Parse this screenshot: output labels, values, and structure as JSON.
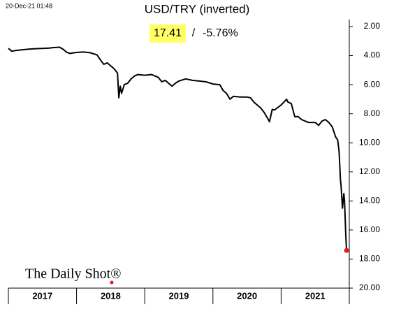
{
  "chart_data": {
    "type": "line",
    "title": "USD/TRY (inverted)",
    "timestamp": "20-Dec-21 01:48",
    "annotation": [
      "17.41",
      "/",
      "-5.76%"
    ],
    "watermark": "The Daily Shot®",
    "categories": [
      "2017",
      "2018",
      "2019",
      "2020",
      "2021"
    ],
    "xlim": [
      2017,
      2022
    ],
    "xticks": [
      2017,
      2018,
      2019,
      2020,
      2021,
      2022
    ],
    "ylim": [
      20,
      2
    ],
    "inverted": true,
    "yticks": [
      {
        "value": 2,
        "label": "2.00"
      },
      {
        "value": 4,
        "label": "4.00"
      },
      {
        "value": 6,
        "label": "6.00"
      },
      {
        "value": 8,
        "label": "8.00"
      },
      {
        "value": 10,
        "label": "10.00"
      },
      {
        "value": 12,
        "label": "12.00"
      },
      {
        "value": 14,
        "label": "14.00"
      },
      {
        "value": 16,
        "label": "16.00"
      },
      {
        "value": 18,
        "label": "18.00"
      },
      {
        "value": 20,
        "label": "20.00"
      }
    ],
    "color": "#000000",
    "end_marker_color": "#e02020",
    "highlight_color": "#ffff66",
    "x": [
      2017.0,
      2017.05,
      2017.1,
      2017.2,
      2017.3,
      2017.4,
      2017.5,
      2017.6,
      2017.65,
      2017.75,
      2017.8,
      2017.85,
      2017.9,
      2018.0,
      2018.1,
      2018.2,
      2018.3,
      2018.35,
      2018.4,
      2018.45,
      2018.5,
      2018.55,
      2018.6,
      2018.62,
      2018.64,
      2018.66,
      2018.7,
      2018.75,
      2018.8,
      2018.85,
      2018.9,
      2019.0,
      2019.1,
      2019.2,
      2019.25,
      2019.3,
      2019.4,
      2019.45,
      2019.5,
      2019.6,
      2019.7,
      2019.8,
      2019.9,
      2020.0,
      2020.1,
      2020.15,
      2020.2,
      2020.25,
      2020.3,
      2020.4,
      2020.5,
      2020.55,
      2020.6,
      2020.7,
      2020.75,
      2020.8,
      2020.83,
      2020.87,
      2020.9,
      2021.0,
      2021.08,
      2021.1,
      2021.15,
      2021.2,
      2021.25,
      2021.3,
      2021.4,
      2021.5,
      2021.55,
      2021.6,
      2021.65,
      2021.7,
      2021.75,
      2021.8,
      2021.83,
      2021.85,
      2021.87,
      2021.88,
      2021.9,
      2021.92,
      2021.93,
      2021.95,
      2021.96
    ],
    "values": [
      3.5,
      3.7,
      3.65,
      3.6,
      3.55,
      3.52,
      3.5,
      3.48,
      3.45,
      3.42,
      3.55,
      3.75,
      3.85,
      3.78,
      3.75,
      3.8,
      3.95,
      4.3,
      4.6,
      4.5,
      4.7,
      4.9,
      5.2,
      6.9,
      6.1,
      6.6,
      6.0,
      5.9,
      5.6,
      5.4,
      5.3,
      5.35,
      5.3,
      5.5,
      5.8,
      5.7,
      6.1,
      5.9,
      5.75,
      5.6,
      5.7,
      5.75,
      5.8,
      5.95,
      6.0,
      6.4,
      6.6,
      7.0,
      6.8,
      6.85,
      6.85,
      6.9,
      7.2,
      7.6,
      7.9,
      8.3,
      8.55,
      7.7,
      7.75,
      7.4,
      7.0,
      7.2,
      7.3,
      8.2,
      8.2,
      8.4,
      8.6,
      8.6,
      8.8,
      8.5,
      8.4,
      8.6,
      8.9,
      9.6,
      9.8,
      10.6,
      12.5,
      13.0,
      14.5,
      13.5,
      14.0,
      16.5,
      17.41
    ]
  }
}
